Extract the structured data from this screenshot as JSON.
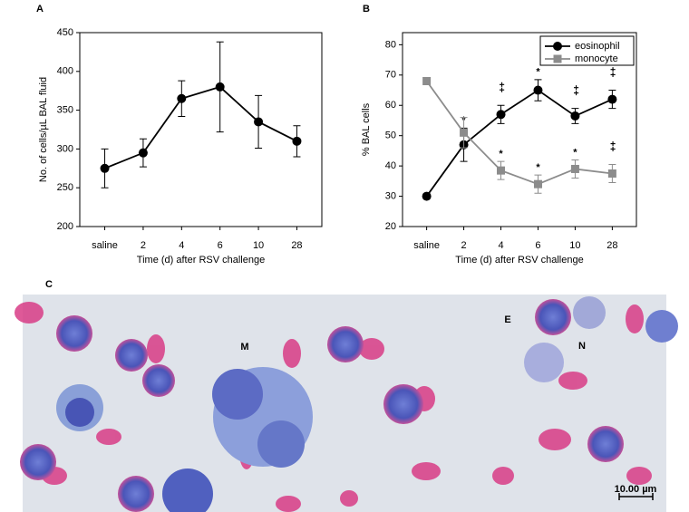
{
  "chart_data": [
    {
      "type": "line",
      "panel_label": "A",
      "xlabel": "Time (d) after RSV challenge",
      "ylabel": "No. of cells/µL BAL fluid",
      "categories": [
        "saline",
        "2",
        "4",
        "6",
        "10",
        "28"
      ],
      "values": [
        275,
        295,
        365,
        380,
        335,
        310
      ],
      "errors": [
        25,
        18,
        23,
        58,
        34,
        20
      ],
      "color": "#000000",
      "marker": "circle",
      "ylim": [
        200,
        450
      ],
      "yticks": [
        200,
        250,
        300,
        350,
        400,
        450
      ]
    },
    {
      "type": "line",
      "panel_label": "B",
      "xlabel": "Time (d) after RSV challenge",
      "ylabel": "% BAL cells",
      "categories": [
        "saline",
        "2",
        "4",
        "6",
        "10",
        "28"
      ],
      "series": [
        {
          "name": "eosinophil",
          "color": "#000000",
          "marker": "circle",
          "values": [
            30,
            47,
            57,
            65,
            56.5,
            62
          ],
          "errors": [
            0.8,
            5.5,
            3,
            3.5,
            2.5,
            3
          ],
          "marks": [
            null,
            "*",
            "++",
            "*",
            "++",
            "++"
          ]
        },
        {
          "name": "monocyte",
          "color": "#8c8c8c",
          "marker": "square",
          "values": [
            68,
            51,
            38.5,
            34,
            39,
            37.5
          ],
          "errors": [
            0.5,
            5,
            3,
            3,
            3,
            3
          ],
          "marks": [
            null,
            null,
            "*",
            "*",
            "*",
            "++"
          ]
        }
      ],
      "legend": "upper right",
      "ylim": [
        20,
        84
      ],
      "yticks": [
        20,
        30,
        40,
        50,
        60,
        70,
        80
      ]
    }
  ],
  "micrograph": {
    "panel_label": "C",
    "labels": [
      "M",
      "E",
      "N"
    ],
    "scale_bar": "10.00 µm"
  }
}
